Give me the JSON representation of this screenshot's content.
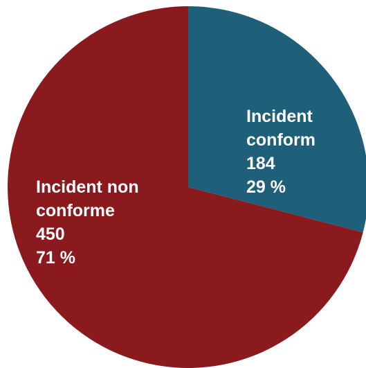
{
  "chart_data": {
    "type": "pie",
    "slices": [
      {
        "label_lines": [
          "Incident",
          "conform"
        ],
        "value": 184,
        "value_text": "184",
        "percent": 29,
        "percent_text": "29 %",
        "color": "#1e5f7a"
      },
      {
        "label_lines": [
          "Incident non",
          "conforme"
        ],
        "value": 450,
        "value_text": "450",
        "percent": 71,
        "percent_text": "71 %",
        "color": "#8b1a1f"
      }
    ],
    "start_angle": "12 o'clock",
    "direction": "clockwise"
  }
}
